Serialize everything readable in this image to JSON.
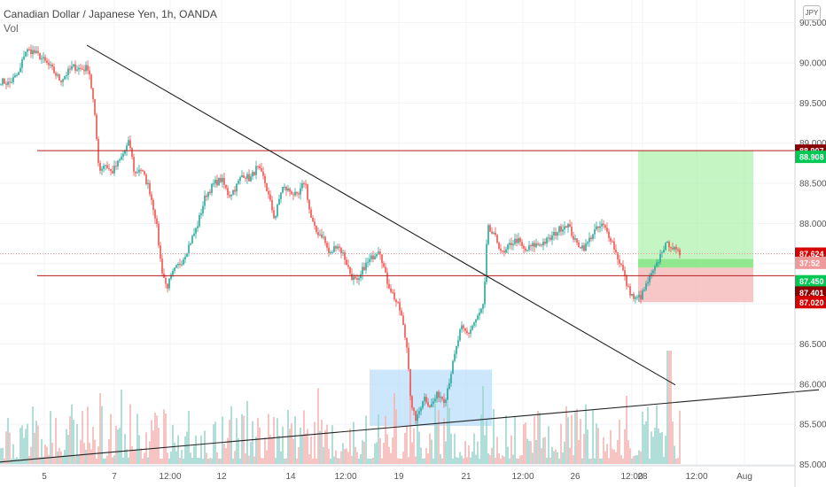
{
  "header": {
    "symbol_title": "Canadian Dollar / Japanese Yen, 1h, OANDA",
    "volume_label": "Vol"
  },
  "currency_badge": "JPY",
  "colors": {
    "up": "#26a69a",
    "down": "#ef5350",
    "vol_up": "#9ed6cf",
    "vol_down": "#f4b5b3",
    "resistance": "#b71c1c",
    "trendline": "#222222",
    "profit_zone": "#a5f0a3",
    "loss_zone": "#f4b4b4",
    "accumulation_zone": "#bbdefb",
    "tag_dark_red": "#8b0000",
    "tag_red": "#d50000",
    "tag_green": "#00c853"
  },
  "chart_data": {
    "type": "candlestick",
    "ylim": [
      85.0,
      90.5
    ],
    "y_ticks": [
      "90.500",
      "90.000",
      "89.500",
      "89.000",
      "88.500",
      "88.000",
      "87.500",
      "87.000",
      "86.500",
      "86.000",
      "85.500",
      "85.000"
    ],
    "x_ticks": [
      "5",
      "7",
      "12:00",
      "12",
      "14",
      "12:00",
      "19",
      "21",
      "12:00",
      "26",
      "12:00",
      "28",
      "12:00",
      "Aug"
    ],
    "waypoints": [
      [
        0,
        89.78
      ],
      [
        10,
        89.74
      ],
      [
        22,
        89.88
      ],
      [
        28,
        90.15
      ],
      [
        36,
        90.15
      ],
      [
        45,
        90.08
      ],
      [
        58,
        89.93
      ],
      [
        68,
        89.78
      ],
      [
        82,
        89.95
      ],
      [
        94,
        89.92
      ],
      [
        100,
        89.95
      ],
      [
        106,
        89.45
      ],
      [
        112,
        88.65
      ],
      [
        118,
        88.75
      ],
      [
        126,
        88.63
      ],
      [
        136,
        88.8
      ],
      [
        146,
        89.02
      ],
      [
        152,
        88.6
      ],
      [
        158,
        88.7
      ],
      [
        168,
        88.45
      ],
      [
        176,
        88.05
      ],
      [
        182,
        87.45
      ],
      [
        188,
        87.2
      ],
      [
        196,
        87.4
      ],
      [
        206,
        87.55
      ],
      [
        214,
        87.75
      ],
      [
        222,
        87.95
      ],
      [
        232,
        88.35
      ],
      [
        242,
        88.5
      ],
      [
        250,
        88.55
      ],
      [
        258,
        88.35
      ],
      [
        266,
        88.45
      ],
      [
        274,
        88.62
      ],
      [
        282,
        88.55
      ],
      [
        290,
        88.7
      ],
      [
        298,
        88.55
      ],
      [
        304,
        88.3
      ],
      [
        310,
        88.05
      ],
      [
        318,
        88.45
      ],
      [
        328,
        88.4
      ],
      [
        336,
        88.32
      ],
      [
        344,
        88.55
      ],
      [
        350,
        88.1
      ],
      [
        356,
        87.9
      ],
      [
        364,
        87.85
      ],
      [
        372,
        87.6
      ],
      [
        380,
        87.75
      ],
      [
        388,
        87.6
      ],
      [
        396,
        87.35
      ],
      [
        404,
        87.25
      ],
      [
        410,
        87.45
      ],
      [
        418,
        87.55
      ],
      [
        428,
        87.7
      ],
      [
        436,
        87.3
      ],
      [
        444,
        87.1
      ],
      [
        452,
        86.9
      ],
      [
        460,
        86.4
      ],
      [
        464,
        85.7
      ],
      [
        470,
        85.55
      ],
      [
        478,
        85.85
      ],
      [
        486,
        85.72
      ],
      [
        494,
        85.88
      ],
      [
        502,
        85.8
      ],
      [
        508,
        86.1
      ],
      [
        514,
        86.4
      ],
      [
        520,
        86.7
      ],
      [
        528,
        86.62
      ],
      [
        534,
        86.75
      ],
      [
        540,
        86.85
      ],
      [
        546,
        87.0
      ],
      [
        550,
        87.95
      ],
      [
        560,
        87.8
      ],
      [
        568,
        87.6
      ],
      [
        576,
        87.75
      ],
      [
        584,
        87.8
      ],
      [
        592,
        87.65
      ],
      [
        600,
        87.72
      ],
      [
        610,
        87.75
      ],
      [
        620,
        87.8
      ],
      [
        630,
        87.92
      ],
      [
        640,
        88.0
      ],
      [
        650,
        87.75
      ],
      [
        660,
        87.7
      ],
      [
        670,
        87.9
      ],
      [
        680,
        87.98
      ],
      [
        690,
        87.8
      ],
      [
        696,
        87.6
      ],
      [
        702,
        87.45
      ],
      [
        708,
        87.2
      ],
      [
        716,
        87.05
      ],
      [
        724,
        87.1
      ],
      [
        732,
        87.3
      ],
      [
        740,
        87.45
      ],
      [
        748,
        87.7
      ],
      [
        756,
        87.75
      ],
      [
        762,
        87.65
      ],
      [
        768,
        87.62
      ]
    ],
    "current_price": 87.624,
    "levels": [
      {
        "label": "resistance",
        "price": 88.907
      },
      {
        "label": "support",
        "price": 87.35
      }
    ],
    "trendlines": [
      {
        "name": "descending",
        "from": [
          98,
          90.22
        ],
        "to": [
          762,
          85.99
        ]
      },
      {
        "name": "ascending",
        "from": [
          0,
          85.03
        ],
        "to": [
          924,
          85.93
        ]
      }
    ],
    "position": {
      "entry": 87.45,
      "target": 88.907,
      "stop": 87.02,
      "x_start": 720,
      "x_end": 850
    },
    "zones": [
      {
        "name": "accumulation",
        "x_start": 417,
        "x_end": 555,
        "y_top": 86.18,
        "y_bottom": 85.48
      }
    ],
    "price_tags": [
      {
        "text": "88.907",
        "price": 88.907,
        "style": "dark_red"
      },
      {
        "text": "88.908",
        "price": 88.83,
        "style": "green"
      },
      {
        "text": "87.624",
        "price": 87.624,
        "style": "red"
      },
      {
        "text": "37:52",
        "price": 87.51,
        "style": "red_light"
      },
      {
        "text": "87.450",
        "price": 87.28,
        "style": "green"
      },
      {
        "text": "87.401",
        "price": 87.14,
        "style": "dark_red"
      },
      {
        "text": "87.020",
        "price": 87.02,
        "style": "red"
      }
    ]
  }
}
